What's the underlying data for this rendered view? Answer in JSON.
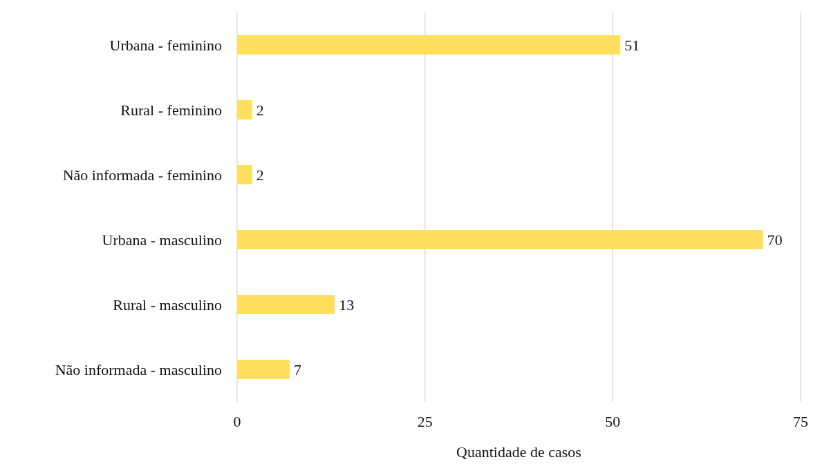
{
  "chart_data": {
    "type": "bar",
    "orientation": "horizontal",
    "xlabel": "Quantidade de casos",
    "categories": [
      "Urbana - feminino",
      "Rural - feminino",
      "Não informada - feminino",
      "Urbana - masculino",
      "Rural - masculino",
      "Não informada - masculino"
    ],
    "values": [
      51,
      2,
      2,
      70,
      13,
      7
    ],
    "color": "#ffdf5e",
    "xlim": [
      0,
      75
    ],
    "xticks": [
      0,
      25,
      50,
      75
    ],
    "grid": "x",
    "data_labels": true
  }
}
